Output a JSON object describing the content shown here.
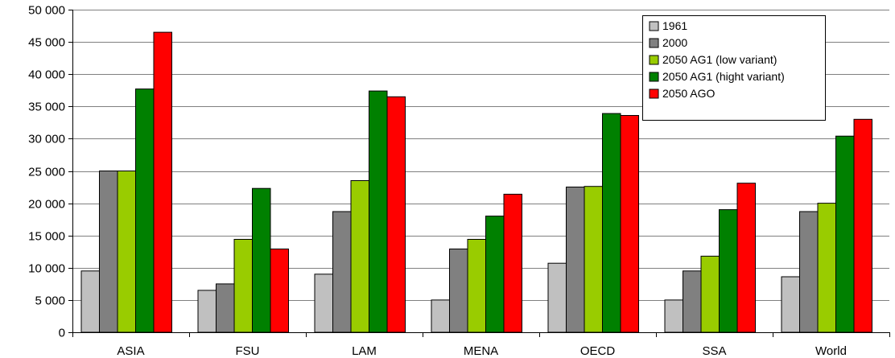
{
  "chart_data": {
    "type": "bar",
    "title": "",
    "xlabel": "",
    "ylabel": "",
    "ylim": [
      0,
      50000
    ],
    "yticks": [
      0,
      5000,
      10000,
      15000,
      20000,
      25000,
      30000,
      35000,
      40000,
      45000,
      50000
    ],
    "ytick_labels": [
      "0",
      "5 000",
      "10 000",
      "15 000",
      "20 000",
      "25 000",
      "30 000",
      "35 000",
      "40 000",
      "45 000",
      "50 000"
    ],
    "grid": "horizontal",
    "legend_position": "top-right",
    "categories": [
      "ASIA",
      "FSU",
      "LAM",
      "MENA",
      "OECD",
      "SSA",
      "World"
    ],
    "series": [
      {
        "name": "1961",
        "color": "#c0c0c0",
        "values": [
          9500,
          6500,
          9000,
          5000,
          10700,
          5000,
          8600
        ]
      },
      {
        "name": "2000",
        "color": "#808080",
        "values": [
          25000,
          7500,
          18700,
          12900,
          22500,
          9500,
          18700
        ]
      },
      {
        "name": "2050 AG1 (low variant)",
        "color": "#99cc00",
        "values": [
          25000,
          14400,
          23500,
          14400,
          22600,
          11800,
          20000
        ]
      },
      {
        "name": "2050 AG1 (hight variant)",
        "color": "#008000",
        "values": [
          37700,
          22300,
          37400,
          18000,
          33900,
          19000,
          30400
        ]
      },
      {
        "name": "2050 AGO",
        "color": "#ff0000",
        "values": [
          46500,
          12900,
          36500,
          21400,
          33600,
          23100,
          33000
        ]
      }
    ]
  }
}
